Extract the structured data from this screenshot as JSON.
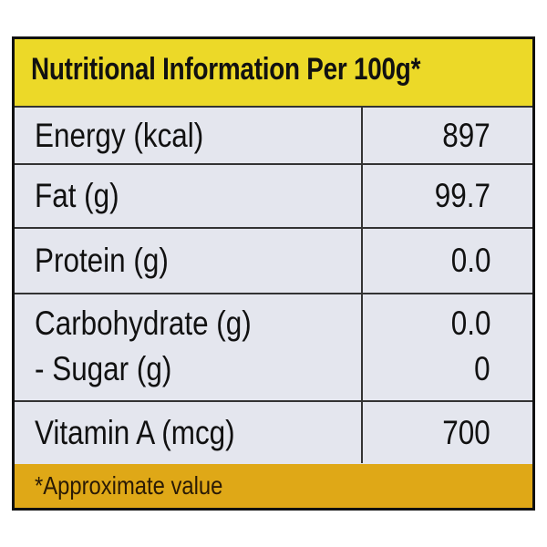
{
  "title": "Nutritional Information Per 100g*",
  "rows": [
    {
      "label": "Energy (kcal)",
      "value": "897"
    },
    {
      "label": "Fat (g)",
      "value": "99.7"
    },
    {
      "label": "Protein (g)",
      "value": "0.0"
    },
    {
      "label": "Carbohydrate (g)",
      "value": "0.0",
      "sub_label": "- Sugar (g)",
      "sub_value": "0"
    },
    {
      "label": "Vitamin A (mcg)",
      "value": "700"
    }
  ],
  "footnote": "*Approximate value",
  "colors": {
    "header": "#ecd928",
    "footer": "#dfa817",
    "body": "#e4e6ee",
    "border": "#111111"
  }
}
